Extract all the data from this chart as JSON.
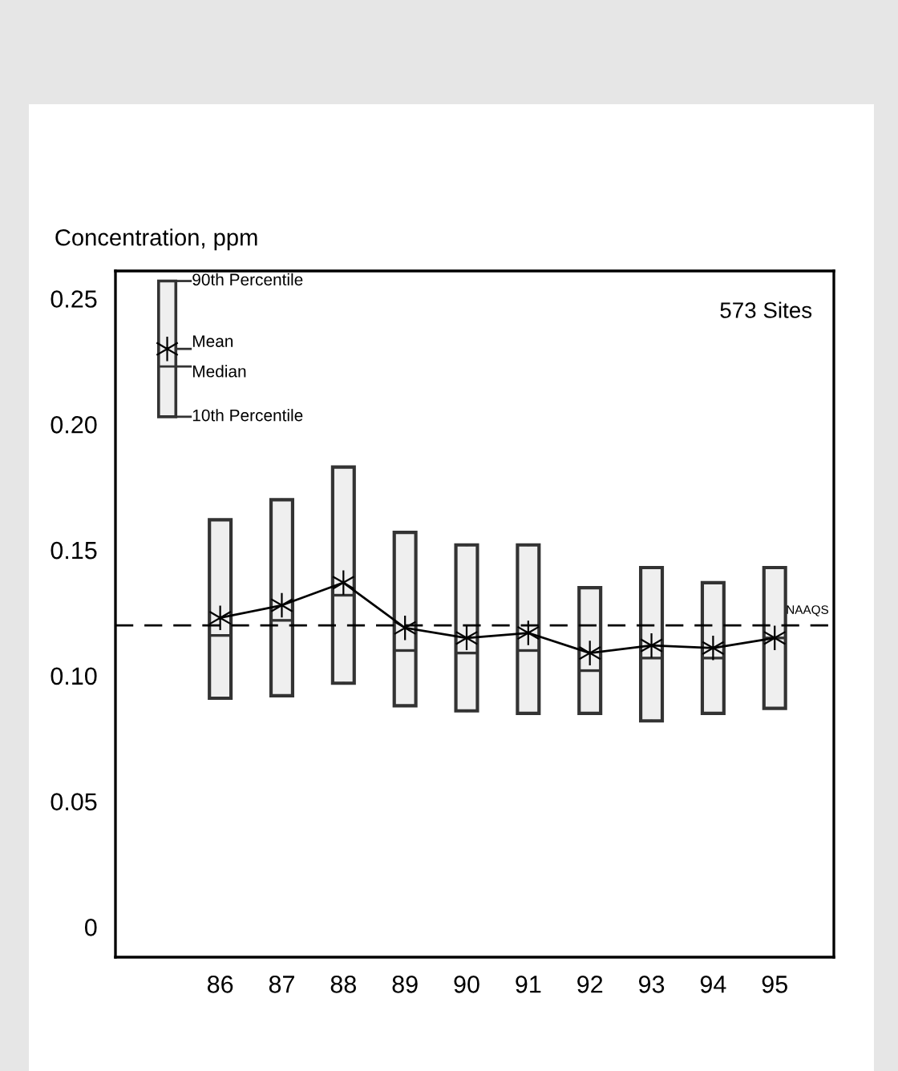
{
  "chart_data": {
    "type": "box",
    "ylabel": "Concentration, ppm",
    "categories": [
      "86",
      "87",
      "88",
      "89",
      "90",
      "91",
      "92",
      "93",
      "94",
      "95"
    ],
    "boxes": [
      {
        "low": 0.091,
        "q1": 0.091,
        "median": 0.116,
        "q3": 0.162,
        "high": 0.162,
        "mean": 0.123
      },
      {
        "low": 0.092,
        "q1": 0.092,
        "median": 0.122,
        "q3": 0.17,
        "high": 0.17,
        "mean": 0.128
      },
      {
        "low": 0.097,
        "q1": 0.097,
        "median": 0.132,
        "q3": 0.183,
        "high": 0.183,
        "mean": 0.137
      },
      {
        "low": 0.088,
        "q1": 0.088,
        "median": 0.11,
        "q3": 0.157,
        "high": 0.157,
        "mean": 0.119
      },
      {
        "low": 0.086,
        "q1": 0.086,
        "median": 0.109,
        "q3": 0.152,
        "high": 0.152,
        "mean": 0.115
      },
      {
        "low": 0.085,
        "q1": 0.085,
        "median": 0.11,
        "q3": 0.152,
        "high": 0.152,
        "mean": 0.117
      },
      {
        "low": 0.085,
        "q1": 0.085,
        "median": 0.102,
        "q3": 0.135,
        "high": 0.135,
        "mean": 0.109
      },
      {
        "low": 0.082,
        "q1": 0.082,
        "median": 0.107,
        "q3": 0.143,
        "high": 0.143,
        "mean": 0.112
      },
      {
        "low": 0.085,
        "q1": 0.085,
        "median": 0.107,
        "q3": 0.137,
        "high": 0.137,
        "mean": 0.111
      },
      {
        "low": 0.087,
        "q1": 0.087,
        "median": 0.115,
        "q3": 0.143,
        "high": 0.143,
        "mean": 0.115
      }
    ],
    "series": [
      {
        "type": "line",
        "color": "#000000",
        "values": [
          0.123,
          0.128,
          0.137,
          0.119,
          0.115,
          0.117,
          0.109,
          0.112,
          0.111,
          0.115
        ]
      }
    ],
    "ylim": [
      -0.012,
      0.261
    ],
    "yticks": [
      0,
      {
        "value": 0.05,
        "label": "0.05"
      },
      {
        "value": 0.1,
        "label": "0.10"
      },
      {
        "value": 0.15,
        "label": "0.15"
      },
      {
        "value": 0.2,
        "label": "0.20"
      },
      {
        "value": 0.25,
        "label": "0.25"
      }
    ],
    "ref_lines": [
      {
        "axis": "y",
        "value": 0.12,
        "label": "NAAQS",
        "line_style": "dashed",
        "color": "#000000"
      }
    ],
    "annotations": [
      "573 Sites",
      "90th Percentile",
      "Mean",
      "Median",
      "10th Percentile"
    ],
    "grid": false,
    "legend": false
  }
}
